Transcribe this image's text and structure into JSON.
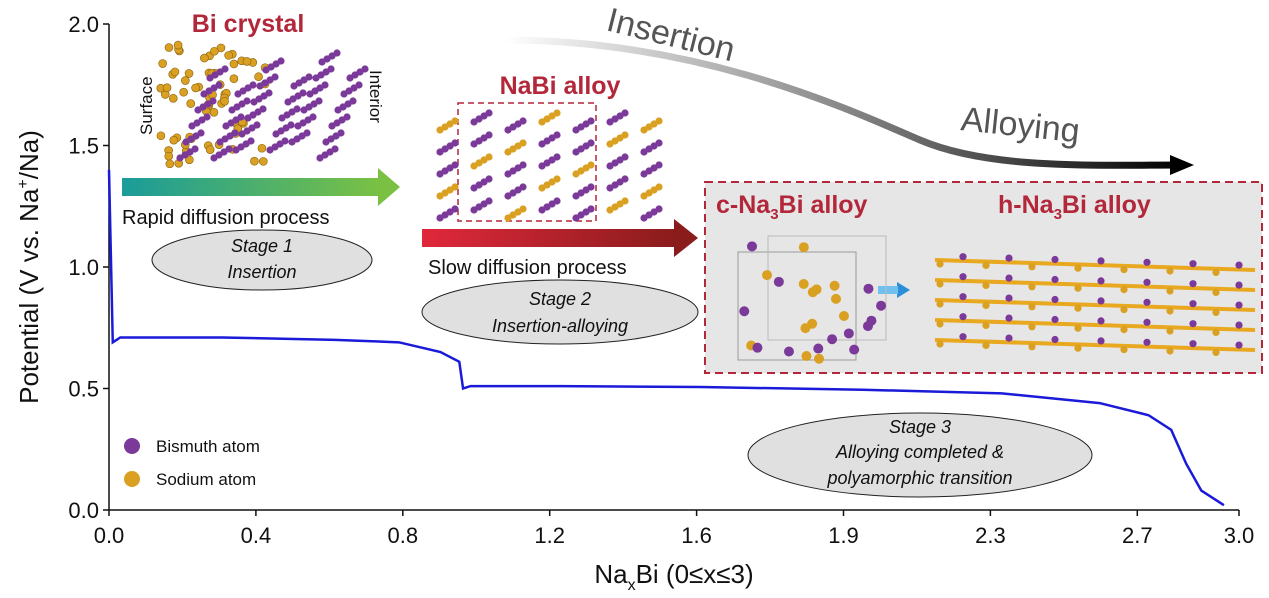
{
  "chart_data": {
    "type": "line",
    "xlabel": [
      "Na",
      "x",
      "Bi (0≤x≤3)"
    ],
    "ylabel": [
      "Potential (V vs. Na",
      "+",
      "/Na)"
    ],
    "x": [
      0,
      0.01,
      0.03,
      0.3,
      0.6,
      0.77,
      0.88,
      0.93,
      0.94,
      0.96,
      1.2,
      1.57,
      2.0,
      2.37,
      2.63,
      2.76,
      2.82,
      2.86,
      2.9,
      2.96
    ],
    "series": [
      {
        "color": "#1a1ad8",
        "values": [
          1.4,
          0.69,
          0.71,
          0.71,
          0.7,
          0.69,
          0.65,
          0.61,
          0.5,
          0.51,
          0.51,
          0.506,
          0.495,
          0.48,
          0.44,
          0.39,
          0.33,
          0.19,
          0.08,
          0.02
        ]
      }
    ],
    "xlim": [
      0,
      3.0
    ],
    "xticks": [
      {
        "value": 0,
        "label": "0.0"
      },
      {
        "value": 0.39,
        "label": "0.4"
      },
      {
        "value": 0.78,
        "label": "0.8"
      },
      {
        "value": 1.17,
        "label": "1.2"
      },
      {
        "value": 1.56,
        "label": "1.6"
      },
      {
        "value": 1.95,
        "label": "1.9"
      },
      {
        "value": 2.34,
        "label": "2.3"
      },
      {
        "value": 2.73,
        "label": "2.7"
      },
      {
        "value": 3.0,
        "label": "3.0"
      }
    ],
    "ylim": [
      0,
      2.0
    ],
    "yticks": [
      {
        "value": 0,
        "label": "0.0"
      },
      {
        "value": 0.5,
        "label": "0.5"
      },
      {
        "value": 1.0,
        "label": "1.0"
      },
      {
        "value": 1.5,
        "label": "1.5"
      },
      {
        "value": 2.0,
        "label": "2.0"
      }
    ],
    "grid": false,
    "annotations": {
      "bi_crystal": "Bi crystal",
      "surface": "Surface",
      "interior": "Interior",
      "nabi": "NaBi alloy",
      "rapid": "Rapid diffusion process",
      "stage1": [
        "Stage 1",
        "Insertion"
      ],
      "slow": "Slow diffusion process",
      "stage2": [
        "Stage 2",
        "Insertion-alloying"
      ],
      "c_na3bi": [
        "c-Na",
        "3",
        "Bi alloy"
      ],
      "h_na3bi": [
        "h-Na",
        "3",
        "Bi alloy"
      ],
      "insertion": "Insertion",
      "alloying": "Alloying",
      "stage3": [
        "Stage 3",
        "Alloying completed &",
        "polyamorphic transition"
      ]
    },
    "legend": [
      {
        "name": "Bismuth atom",
        "color": "#7b3a9a"
      },
      {
        "name": "Sodium atom",
        "color": "#d9a021"
      }
    ]
  }
}
